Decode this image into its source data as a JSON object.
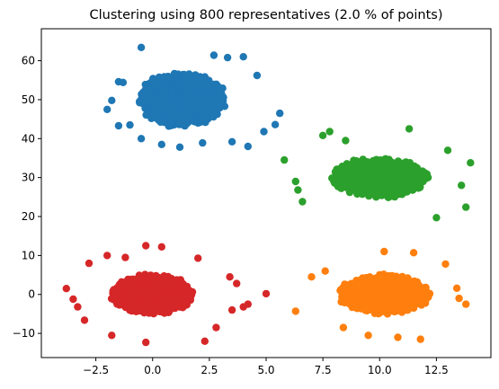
{
  "chart_data": {
    "type": "scatter",
    "title": "Clustering using 800 representatives (2.0 % of points)",
    "xlabel": "",
    "ylabel": "",
    "xlim": [
      -4.9,
      14.9
    ],
    "ylim": [
      -16.2,
      68.2
    ],
    "xticks": [
      -2.5,
      0.0,
      2.5,
      5.0,
      7.5,
      10.0,
      12.5
    ],
    "xtick_labels": [
      "−2.5",
      "0.0",
      "2.5",
      "5.0",
      "7.5",
      "10.0",
      "12.5"
    ],
    "yticks": [
      -10,
      0,
      10,
      20,
      30,
      40,
      50,
      60
    ],
    "ytick_labels": [
      "−10",
      "0",
      "10",
      "20",
      "30",
      "40",
      "50",
      "60"
    ],
    "grid": false,
    "legend": false,
    "series": [
      {
        "color": "#1f77b4",
        "center": [
          1.3,
          50.0
        ],
        "spread": [
          1.9,
          6.8
        ],
        "outliers": [
          [
            -0.5,
            63.4
          ],
          [
            -1.3,
            54.4
          ],
          [
            -1.5,
            54.6
          ],
          [
            -2.0,
            47.5
          ],
          [
            -1.8,
            49.8
          ],
          [
            -1.5,
            43.3
          ],
          [
            -1.0,
            43.5
          ],
          [
            -0.5,
            40.0
          ],
          [
            0.4,
            38.5
          ],
          [
            1.2,
            37.8
          ],
          [
            2.2,
            38.9
          ],
          [
            3.5,
            39.2
          ],
          [
            4.2,
            38.0
          ],
          [
            4.9,
            41.8
          ],
          [
            5.4,
            43.6
          ],
          [
            5.6,
            46.5
          ],
          [
            4.0,
            61.0
          ],
          [
            3.3,
            60.8
          ],
          [
            2.7,
            61.4
          ],
          [
            4.6,
            56.2
          ]
        ]
      },
      {
        "color": "#ff7f0e",
        "center": [
          10.2,
          0.0
        ],
        "spread": [
          2.0,
          5.0
        ],
        "outliers": [
          [
            6.3,
            -4.3
          ],
          [
            7.0,
            4.5
          ],
          [
            7.6,
            6.0
          ],
          [
            13.5,
            -1.0
          ],
          [
            13.8,
            -2.5
          ],
          [
            13.4,
            1.6
          ],
          [
            11.8,
            -11.5
          ],
          [
            10.8,
            -11.0
          ],
          [
            9.5,
            -10.5
          ],
          [
            8.4,
            -8.5
          ],
          [
            12.9,
            7.8
          ],
          [
            11.5,
            10.7
          ],
          [
            10.2,
            11.0
          ]
        ]
      },
      {
        "color": "#2ca02c",
        "center": [
          10.0,
          30.0
        ],
        "spread": [
          2.1,
          5.0
        ],
        "outliers": [
          [
            5.8,
            34.5
          ],
          [
            6.3,
            29.0
          ],
          [
            6.4,
            26.8
          ],
          [
            7.5,
            40.8
          ],
          [
            7.8,
            41.8
          ],
          [
            11.3,
            42.5
          ],
          [
            13.6,
            28.0
          ],
          [
            13.8,
            22.4
          ],
          [
            14.0,
            33.8
          ],
          [
            6.6,
            23.8
          ],
          [
            8.5,
            39.5
          ],
          [
            12.5,
            19.7
          ],
          [
            13.0,
            37.0
          ]
        ]
      },
      {
        "color": "#d62728",
        "center": [
          0.0,
          0.0
        ],
        "spread": [
          1.8,
          5.0
        ],
        "outliers": [
          [
            -3.8,
            1.5
          ],
          [
            -3.5,
            -1.2
          ],
          [
            -3.3,
            -3.2
          ],
          [
            -3.0,
            -6.6
          ],
          [
            -2.8,
            8.0
          ],
          [
            -2.0,
            10.0
          ],
          [
            -0.3,
            12.5
          ],
          [
            0.4,
            12.2
          ],
          [
            2.0,
            9.3
          ],
          [
            3.4,
            4.5
          ],
          [
            3.7,
            2.8
          ],
          [
            4.0,
            -3.2
          ],
          [
            4.2,
            -2.5
          ],
          [
            5.0,
            0.2
          ],
          [
            -0.3,
            -12.3
          ],
          [
            2.3,
            -12.0
          ],
          [
            -1.8,
            -10.5
          ],
          [
            3.5,
            -4.0
          ],
          [
            -1.2,
            9.5
          ],
          [
            2.8,
            -8.5
          ]
        ]
      }
    ]
  }
}
